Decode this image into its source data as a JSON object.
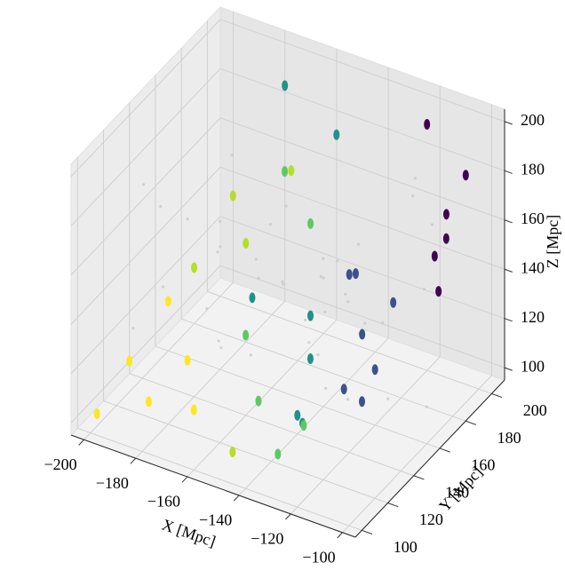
{
  "chart_data": {
    "type": "scatter3d",
    "xlabel": "X [Mpc]",
    "ylabel": "Y [Mpc]",
    "zlabel": "Z [Mpc]",
    "xlim": [
      -205,
      -95
    ],
    "ylim": [
      95,
      210
    ],
    "zlim": [
      95,
      205
    ],
    "xticks": [
      {
        "value": -200,
        "label": "−200"
      },
      {
        "value": -180,
        "label": "−180"
      },
      {
        "value": -160,
        "label": "−160"
      },
      {
        "value": -140,
        "label": "−140"
      },
      {
        "value": -120,
        "label": "−120"
      },
      {
        "value": -100,
        "label": "−100"
      }
    ],
    "yticks": [
      100,
      120,
      140,
      160,
      180,
      200
    ],
    "zticks": [
      100,
      120,
      140,
      160,
      180,
      200
    ],
    "grid": true,
    "clusters": {
      "x": [
        -105,
        -110,
        -112,
        -100,
        -120,
        -108,
        -118,
        -125,
        -115,
        -130,
        -122,
        -135,
        -110,
        -140,
        -150,
        -135,
        -128,
        -145,
        -175,
        -160,
        -150,
        -140,
        -125,
        -155,
        -165,
        -130,
        -160,
        -170,
        -185,
        -145,
        -180,
        -190,
        -195,
        -185,
        -175,
        -200,
        -165
      ],
      "y": [
        200,
        195,
        190,
        175,
        200,
        185,
        170,
        160,
        150,
        165,
        140,
        170,
        130,
        150,
        190,
        130,
        120,
        160,
        200,
        145,
        170,
        110,
        115,
        130,
        180,
        105,
        175,
        160,
        150,
        100,
        170,
        140,
        120,
        115,
        125,
        105,
        110
      ],
      "z": [
        180,
        165,
        150,
        170,
        195,
        140,
        140,
        130,
        125,
        150,
        120,
        145,
        125,
        120,
        185,
        110,
        115,
        130,
        190,
        140,
        160,
        125,
        118,
        135,
        170,
        110,
        175,
        150,
        140,
        108,
        160,
        130,
        115,
        105,
        120,
        100,
        112
      ],
      "colors": [
        "#440154",
        "#440154",
        "#440154",
        "#440154",
        "#440154",
        "#440154",
        "#3b528b",
        "#3b528b",
        "#3b528b",
        "#3b528b",
        "#3b528b",
        "#3b528b",
        "#3b528b",
        "#21918c",
        "#21918c",
        "#21918c",
        "#21918c",
        "#21918c",
        "#21918c",
        "#21918c",
        "#5ec962",
        "#5ec962",
        "#5ec962",
        "#5ec962",
        "#5ec962",
        "#5ec962",
        "#b5de2b",
        "#b5de2b",
        "#b5de2b",
        "#b5de2b",
        "#b5de2b",
        "#fde725",
        "#fde725",
        "#fde725",
        "#fde725",
        "#fde725",
        "#fde725"
      ]
    },
    "background": {
      "color": "#c8c8c8",
      "x": [
        -198,
        -190,
        -182,
        -176,
        -170,
        -166,
        -160,
        -155,
        -150,
        -146,
        -142,
        -138,
        -134,
        -130,
        -126,
        -122,
        -118,
        -114,
        -110,
        -106,
        -102,
        -196,
        -186,
        -178,
        -168,
        -158,
        -148,
        -138,
        -128,
        -118,
        -108,
        -100,
        -192,
        -172,
        -152,
        -132,
        -112,
        -180,
        -162,
        -144,
        -124,
        -104
      ],
      "y": [
        150,
        180,
        120,
        200,
        140,
        160,
        110,
        190,
        130,
        170,
        150,
        100,
        180,
        140,
        160,
        120,
        200,
        110,
        150,
        170,
        130,
        190,
        105,
        165,
        135,
        155,
        145,
        175,
        125,
        185,
        115,
        160,
        125,
        195,
        185,
        155,
        175,
        135,
        125,
        195,
        145,
        105
      ],
      "z": [
        160,
        130,
        150,
        110,
        170,
        145,
        155,
        125,
        160,
        140,
        135,
        150,
        120,
        170,
        130,
        145,
        155,
        140,
        115,
        150,
        160,
        120,
        140,
        180,
        125,
        165,
        150,
        130,
        145,
        175,
        135,
        110,
        185,
        145,
        115,
        160,
        190,
        170,
        130,
        140,
        155,
        145
      ]
    }
  }
}
